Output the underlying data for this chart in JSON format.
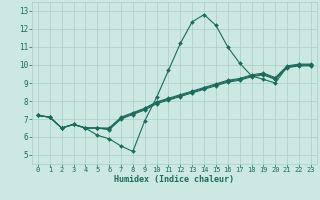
{
  "xlabel": "Humidex (Indice chaleur)",
  "xlim": [
    -0.5,
    23.5
  ],
  "ylim": [
    4.5,
    13.5
  ],
  "xticks": [
    0,
    1,
    2,
    3,
    4,
    5,
    6,
    7,
    8,
    9,
    10,
    11,
    12,
    13,
    14,
    15,
    16,
    17,
    18,
    19,
    20,
    21,
    22,
    23
  ],
  "yticks": [
    5,
    6,
    7,
    8,
    9,
    10,
    11,
    12,
    13
  ],
  "bg_color": "#cce8e2",
  "line_color": "#1a6b5e",
  "grid_color": "#aaccc6",
  "lines": [
    [
      7.2,
      7.1,
      6.5,
      6.7,
      6.5,
      6.1,
      5.9,
      5.5,
      5.2,
      6.9,
      8.2,
      9.7,
      11.2,
      12.4,
      12.8,
      12.2,
      11.0,
      10.1,
      9.4,
      9.2,
      9.0,
      9.9,
      10.0,
      10.0
    ],
    [
      7.2,
      7.1,
      6.5,
      6.7,
      6.5,
      6.5,
      6.4,
      7.0,
      7.25,
      7.5,
      7.85,
      8.05,
      8.25,
      8.45,
      8.65,
      8.85,
      9.05,
      9.15,
      9.35,
      9.45,
      9.2,
      9.85,
      9.95,
      9.95
    ],
    [
      7.2,
      7.1,
      6.5,
      6.7,
      6.5,
      6.5,
      6.45,
      7.05,
      7.3,
      7.55,
      7.9,
      8.1,
      8.3,
      8.5,
      8.7,
      8.9,
      9.1,
      9.2,
      9.4,
      9.5,
      9.25,
      9.9,
      10.0,
      10.0
    ],
    [
      7.2,
      7.1,
      6.5,
      6.7,
      6.5,
      6.5,
      6.5,
      7.1,
      7.35,
      7.6,
      7.95,
      8.15,
      8.35,
      8.55,
      8.75,
      8.95,
      9.15,
      9.25,
      9.45,
      9.55,
      9.3,
      9.95,
      10.05,
      10.05
    ]
  ]
}
